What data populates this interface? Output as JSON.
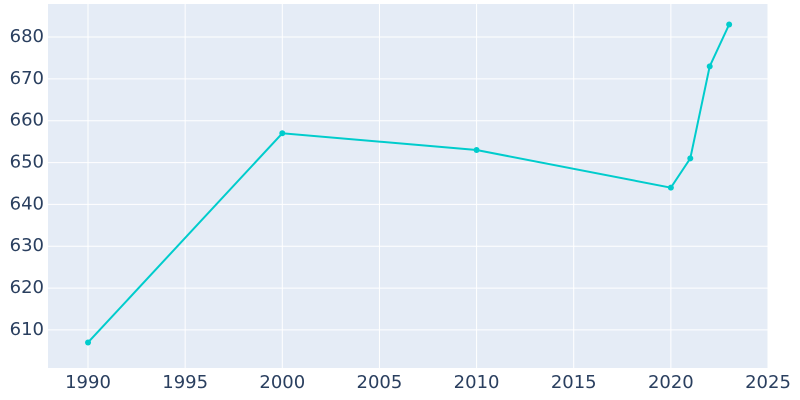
{
  "chart_data": {
    "type": "line",
    "x": [
      1990,
      2000,
      2010,
      2020,
      2021,
      2022,
      2023
    ],
    "series": [
      {
        "color": "#00cccc",
        "values": [
          607,
          657,
          653,
          644,
          651,
          673,
          683
        ]
      }
    ],
    "xlim": [
      1987.94,
      2025
    ],
    "xticks": [
      1990,
      1995,
      2000,
      2005,
      2010,
      2015,
      2020,
      2025
    ],
    "ylim": [
      600.9,
      687.9
    ],
    "yticks": [
      610,
      620,
      630,
      640,
      650,
      660,
      670,
      680
    ],
    "grid": true
  }
}
